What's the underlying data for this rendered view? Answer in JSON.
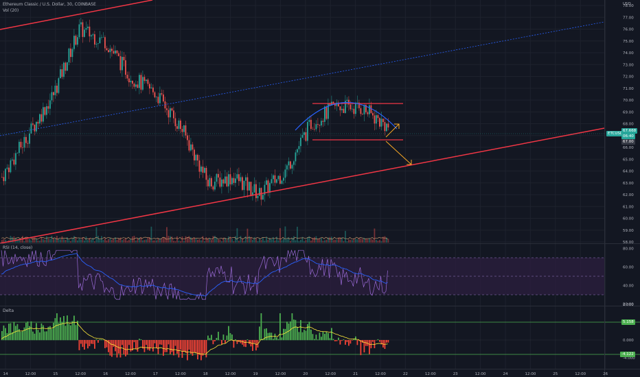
{
  "legend": {
    "main_title": "Ethereum Classic / U.S. Dollar, 30, COINBASE",
    "volume_label": "Vol (20)",
    "rsi_label": "RSI (14, close)",
    "delta_label": "Delta"
  },
  "price_axis": {
    "currency": "USD",
    "ticks": [
      "78.00",
      "77.00",
      "76.00",
      "75.00",
      "74.00",
      "73.00",
      "72.00",
      "71.00",
      "70.00",
      "69.00",
      "68.00",
      "67.00",
      "66.00",
      "65.00",
      "64.00",
      "63.00",
      "62.00",
      "61.00",
      "60.00",
      "59.00",
      "58.00"
    ],
    "symbol_tag": "ETCUSD",
    "last_price": "67.668",
    "countdown": "06:40",
    "ref_price": "67.00"
  },
  "rsi_axis": {
    "ticks": [
      "80.00",
      "60.00",
      "40.00",
      "20.00"
    ]
  },
  "delta_axis": {
    "ticks": [
      "8.000",
      "4.000",
      "0.000",
      "-4.000"
    ],
    "upper_tag": "5.158",
    "lower_tag": "-4.122"
  },
  "time_axis": {
    "labels": [
      "14",
      "12:00",
      "15",
      "12:00",
      "16",
      "12:00",
      "17",
      "12:00",
      "18",
      "12:00",
      "19",
      "12:00",
      "20",
      "12:00",
      "21",
      "12:00",
      "22",
      "12:00",
      "23",
      "12:00",
      "24",
      "12:00",
      "25",
      "12:00",
      "26"
    ]
  },
  "colors": {
    "background": "#131722",
    "up": "#26a69a",
    "down": "#ef5350",
    "trendline": "#f23645",
    "arc": "#2962ff",
    "arrow": "#f9a825",
    "rsi_line": "#7e57c2",
    "rsi_ma": "#2962ff",
    "rsi_band": "#2a1e3d",
    "delta_up": "#4caf50",
    "delta_down": "#f44336",
    "delta_ma": "#ffeb3b",
    "tag_green": "#26a69a"
  },
  "chart_data": {
    "type": "candlestick",
    "timeframe": "30",
    "x_labels": [
      "14",
      "15",
      "16",
      "17",
      "18",
      "19",
      "20",
      "21",
      "22",
      "23",
      "24",
      "25",
      "26"
    ],
    "ylim": [
      58,
      78
    ],
    "approx_close_path": [
      {
        "t": "14 00:00",
        "price": 63.5
      },
      {
        "t": "14 12:00",
        "price": 67.0
      },
      {
        "t": "15 00:00",
        "price": 70.5
      },
      {
        "t": "15 12:00",
        "price": 76.0
      },
      {
        "t": "16 00:00",
        "price": 75.0
      },
      {
        "t": "16 12:00",
        "price": 72.0
      },
      {
        "t": "17 00:00",
        "price": 70.5
      },
      {
        "t": "17 12:00",
        "price": 67.5
      },
      {
        "t": "18 00:00",
        "price": 63.0
      },
      {
        "t": "18 12:00",
        "price": 63.5
      },
      {
        "t": "19 00:00",
        "price": 62.0
      },
      {
        "t": "19 12:00",
        "price": 64.0
      },
      {
        "t": "20 00:00",
        "price": 68.0
      },
      {
        "t": "20 12:00",
        "price": 69.5
      },
      {
        "t": "21 00:00",
        "price": 69.3
      },
      {
        "t": "21 12:00",
        "price": 67.7
      }
    ],
    "annotations": [
      {
        "kind": "resistance",
        "price": 70.35
      },
      {
        "kind": "support",
        "price": 67.2
      },
      {
        "kind": "rounded-top-arc",
        "from_price": 68.0,
        "peak_price": 70.4,
        "to_price": 67.9
      }
    ],
    "rsi": {
      "upper": 70,
      "middle": 50,
      "lower": 30,
      "last": 41
    },
    "delta": {
      "upper_level": 5.158,
      "lower_level": -4.122
    }
  }
}
